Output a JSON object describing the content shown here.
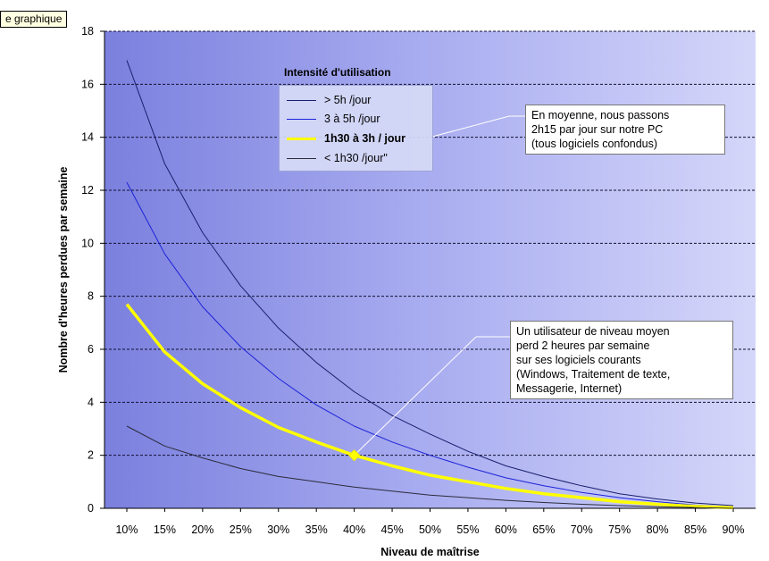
{
  "tag_label": "e graphique",
  "chart_data": {
    "type": "line",
    "xlabel": "Niveau de maîtrise",
    "ylabel": "Nombre d'heures perdues par semaine",
    "categories": [
      "10%",
      "15%",
      "20%",
      "25%",
      "30%",
      "35%",
      "40%",
      "45%",
      "50%",
      "55%",
      "60%",
      "65%",
      "70%",
      "75%",
      "80%",
      "85%",
      "90%"
    ],
    "x": [
      10,
      15,
      20,
      25,
      30,
      35,
      40,
      45,
      50,
      55,
      60,
      65,
      70,
      75,
      80,
      85,
      90
    ],
    "ylim": [
      0,
      18
    ],
    "yticks": [
      0,
      2,
      4,
      6,
      8,
      10,
      12,
      14,
      16,
      18
    ],
    "grid": "horizontal-dashed",
    "legend": {
      "title": "Intensité d'utilisation",
      "placement": "top-left",
      "entries": [
        "> 5h /jour",
        "3 à 5h /jour",
        "1h30 à 3h / jour",
        "< 1h30 /jour\""
      ]
    },
    "series": [
      {
        "name": "> 5h /jour",
        "color": "#1a1f6e",
        "values": [
          16.9,
          13.0,
          10.4,
          8.4,
          6.8,
          5.5,
          4.4,
          3.5,
          2.8,
          2.15,
          1.6,
          1.2,
          0.85,
          0.55,
          0.35,
          0.2,
          0.1
        ]
      },
      {
        "name": "3 à 5h /jour",
        "color": "#1c22d8",
        "values": [
          12.3,
          9.6,
          7.6,
          6.1,
          4.9,
          3.9,
          3.1,
          2.5,
          2.0,
          1.55,
          1.15,
          0.85,
          0.6,
          0.4,
          0.25,
          0.12,
          0.05
        ]
      },
      {
        "name": "1h30 à 3h / jour",
        "color": "#ffff00",
        "values": [
          7.7,
          5.9,
          4.7,
          3.8,
          3.05,
          2.5,
          2.0,
          1.6,
          1.25,
          1.0,
          0.75,
          0.55,
          0.4,
          0.25,
          0.15,
          0.07,
          0.02
        ]
      },
      {
        "name": "< 1h30 /jour\"",
        "color": "#2b2b3a",
        "values": [
          3.1,
          2.35,
          1.9,
          1.5,
          1.2,
          1.0,
          0.8,
          0.65,
          0.5,
          0.4,
          0.3,
          0.22,
          0.15,
          0.1,
          0.06,
          0.03,
          0.0
        ]
      }
    ],
    "highlight_point": {
      "x": 40,
      "y": 2.0,
      "series": "1h30 à 3h / jour"
    },
    "annotations": [
      {
        "id": "ann1",
        "text": "En moyenne, nous passons\n2h15 par jour sur notre PC\n(tous logiciels confondus)",
        "points_to": "legend-entry-1h30-3h"
      },
      {
        "id": "ann2",
        "text": "Un utilisateur de niveau moyen\nperd 2 heures par semaine\nsur ses logiciels courants\n(Windows, Traitement de texte,\nMessagerie, Internet)",
        "points_to": {
          "x": 40,
          "y": 2.0
        }
      }
    ]
  }
}
